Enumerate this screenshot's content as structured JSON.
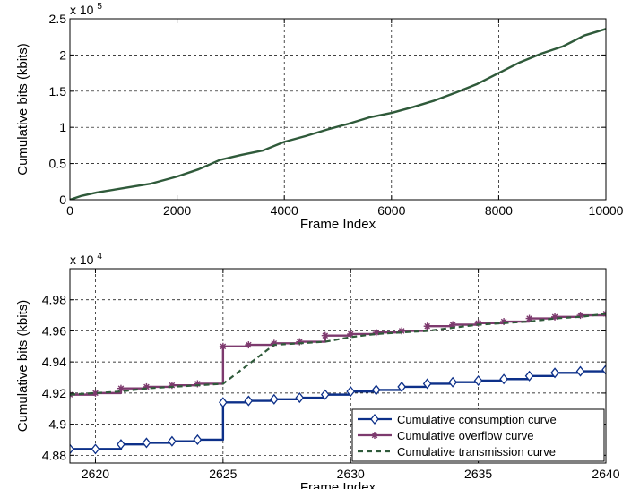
{
  "chart_data": [
    {
      "type": "line",
      "title": "",
      "xlabel": "Frame Index",
      "ylabel": "Cumulative bits (kbits)",
      "exponent_label": "x 10",
      "exponent_power": "5",
      "xlim": [
        0,
        10000
      ],
      "ylim": [
        0,
        2.5
      ],
      "xticks": [
        0,
        2000,
        4000,
        6000,
        8000,
        10000
      ],
      "yticks": [
        0,
        0.5,
        1,
        1.5,
        2,
        2.5
      ],
      "xtick_labels": [
        "0",
        "2000",
        "4000",
        "6000",
        "8000",
        "10000"
      ],
      "ytick_labels": [
        "0",
        "0.5",
        "1",
        "1.5",
        "2",
        "2.5"
      ],
      "grid": true,
      "series": [
        {
          "color": "#2f5a3a",
          "style": "solid",
          "x": [
            0,
            200,
            500,
            1000,
            1500,
            2000,
            2400,
            2800,
            3200,
            3600,
            4000,
            4400,
            4800,
            5200,
            5600,
            6000,
            6400,
            6800,
            7200,
            7600,
            8000,
            8400,
            8800,
            9200,
            9600,
            10000
          ],
          "y": [
            0,
            0.05,
            0.1,
            0.16,
            0.22,
            0.32,
            0.42,
            0.55,
            0.62,
            0.68,
            0.8,
            0.88,
            0.97,
            1.05,
            1.14,
            1.2,
            1.28,
            1.37,
            1.48,
            1.6,
            1.75,
            1.9,
            2.02,
            2.12,
            2.27,
            2.36
          ]
        }
      ]
    },
    {
      "type": "line",
      "title": "",
      "xlabel": "Frame Index",
      "ylabel": "Cumulative bits (kbits)",
      "exponent_label": "x 10",
      "exponent_power": "4",
      "xlim": [
        2619,
        2640
      ],
      "ylim": [
        4.875,
        5.0
      ],
      "xticks": [
        2620,
        2625,
        2630,
        2635,
        2640
      ],
      "yticks": [
        4.88,
        4.9,
        4.92,
        4.94,
        4.96,
        4.98
      ],
      "xtick_labels": [
        "2620",
        "2625",
        "2630",
        "2635",
        "2640"
      ],
      "ytick_labels": [
        "4.88",
        "4.9",
        "4.92",
        "4.94",
        "4.96",
        "4.98"
      ],
      "grid": true,
      "legend_position": "bottom-right",
      "series": [
        {
          "name": "Cumulative consumption curve",
          "color": "#0d3089",
          "style": "step",
          "marker": "diamond",
          "x": [
            2619,
            2620,
            2621,
            2622,
            2623,
            2624,
            2625,
            2626,
            2627,
            2628,
            2629,
            2630,
            2631,
            2632,
            2633,
            2634,
            2635,
            2636,
            2637,
            2638,
            2639,
            2640
          ],
          "y": [
            4.884,
            4.884,
            4.887,
            4.888,
            4.889,
            4.89,
            4.914,
            4.915,
            4.916,
            4.917,
            4.919,
            4.921,
            4.922,
            4.924,
            4.926,
            4.927,
            4.928,
            4.929,
            4.931,
            4.933,
            4.934,
            4.935
          ]
        },
        {
          "name": "Cumulative overflow curve",
          "color": "#7d3a6e",
          "style": "step",
          "marker": "star",
          "x": [
            2619,
            2620,
            2621,
            2622,
            2623,
            2624,
            2625,
            2626,
            2627,
            2628,
            2629,
            2630,
            2631,
            2632,
            2633,
            2634,
            2635,
            2636,
            2637,
            2638,
            2639,
            2640
          ],
          "y": [
            4.919,
            4.92,
            4.923,
            4.924,
            4.925,
            4.926,
            4.95,
            4.951,
            4.952,
            4.953,
            4.957,
            4.958,
            4.959,
            4.96,
            4.963,
            4.964,
            4.965,
            4.966,
            4.968,
            4.969,
            4.97,
            4.971
          ]
        },
        {
          "name": "Cumulative transmission curve",
          "color": "#2f5a3a",
          "style": "dashed",
          "marker": "none",
          "x": [
            2619,
            2620,
            2621,
            2622,
            2623,
            2624,
            2625,
            2627,
            2628,
            2629,
            2630,
            2631,
            2632,
            2633,
            2634,
            2635,
            2636,
            2637,
            2638,
            2639,
            2640
          ],
          "y": [
            4.919,
            4.92,
            4.921,
            4.923,
            4.924,
            4.925,
            4.926,
            4.951,
            4.952,
            4.953,
            4.956,
            4.958,
            4.959,
            4.96,
            4.962,
            4.964,
            4.965,
            4.966,
            4.968,
            4.969,
            4.971
          ]
        }
      ]
    }
  ]
}
